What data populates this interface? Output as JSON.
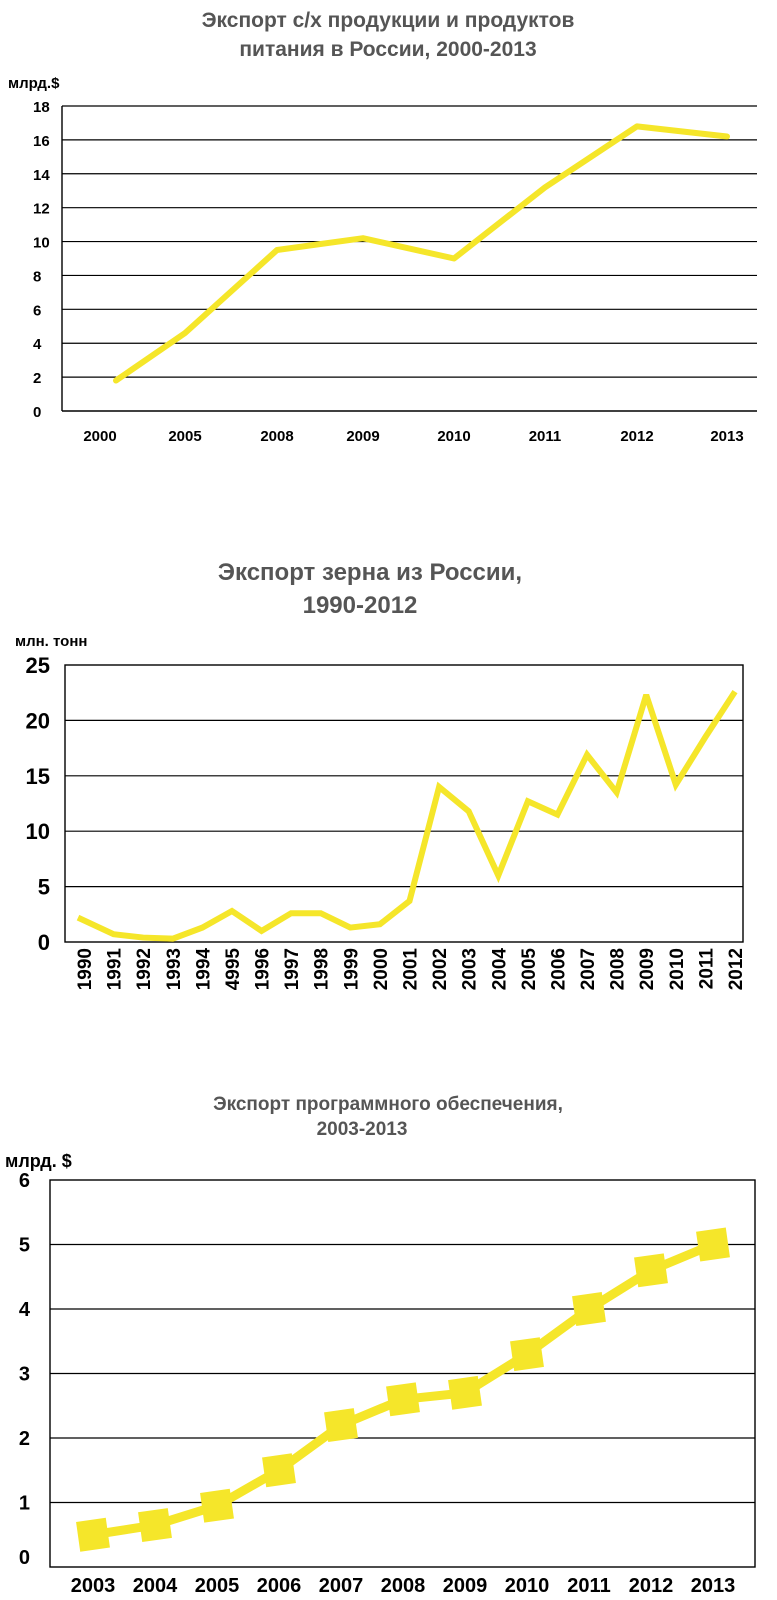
{
  "chart_data": [
    {
      "type": "line",
      "title": "Экспорт с/х продукции и продуктов",
      "title_line2": "питания в России, 2000-2013",
      "ylabel": "млрд.$",
      "categories": [
        "2000",
        "2005",
        "2008",
        "2009",
        "2010",
        "2011",
        "2012",
        "2013"
      ],
      "ylim": [
        0,
        18
      ],
      "yticks": [
        0,
        2,
        4,
        6,
        8,
        10,
        12,
        14,
        16,
        18
      ],
      "series": [
        {
          "points": [
            [
              0,
              1.8
            ],
            [
              1,
              4.6
            ],
            [
              2,
              9.5
            ],
            [
              3,
              10.2
            ],
            [
              4,
              9.0
            ],
            [
              5,
              13.2
            ],
            [
              6,
              16.8
            ],
            [
              7,
              16.2
            ]
          ]
        }
      ],
      "grid": true,
      "line_color": "#f5e62a"
    },
    {
      "type": "line",
      "title": "Экспорт зерна из России,",
      "title_line2": "1990-2012",
      "ylabel": "млн. тонн",
      "categories": [
        "1990",
        "1991",
        "1992",
        "1993",
        "1994",
        "4995",
        "1996",
        "1997",
        "1998",
        "1999",
        "2000",
        "2001",
        "2002",
        "2003",
        "2004",
        "2005",
        "2006",
        "2007",
        "2008",
        "2009",
        "2010",
        "2011",
        "2012"
      ],
      "ylim": [
        0,
        25
      ],
      "yticks": [
        0,
        5,
        10,
        15,
        20,
        25
      ],
      "values": [
        2.2,
        0.7,
        0.4,
        0.3,
        1.3,
        2.8,
        1.0,
        2.6,
        2.6,
        1.3,
        1.6,
        3.7,
        14.0,
        11.8,
        6.0,
        12.7,
        11.5,
        16.9,
        13.5,
        22.3,
        14.2,
        18.5,
        22.6
      ],
      "grid": true,
      "line_color": "#f5e62a"
    },
    {
      "type": "line",
      "title": "Экспорт программного обеспечения,",
      "title_line2": "2003-2013",
      "ylabel": "млрд. $",
      "categories": [
        "2003",
        "2004",
        "2005",
        "2006",
        "2007",
        "2008",
        "2009",
        "2010",
        "2011",
        "2012",
        "2013"
      ],
      "ylim": [
        0,
        6
      ],
      "yticks": [
        0,
        1,
        2,
        3,
        4,
        5,
        6
      ],
      "values": [
        0.5,
        0.65,
        0.95,
        1.5,
        2.2,
        2.6,
        2.7,
        3.3,
        4.0,
        4.6,
        5.0
      ],
      "markers": "square",
      "grid": true,
      "line_color": "#f5e62a"
    }
  ]
}
